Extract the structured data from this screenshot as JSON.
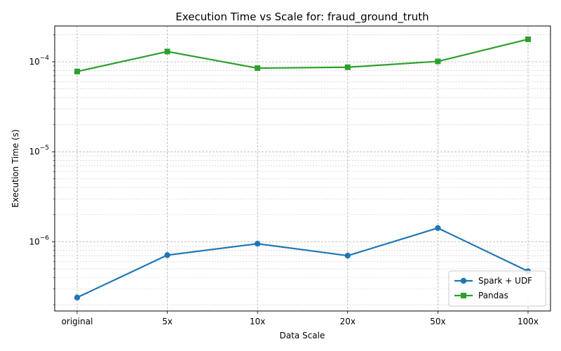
{
  "chart_data": {
    "type": "line",
    "title": "Execution Time vs Scale for: fraud_ground_truth",
    "xlabel": "Data Scale",
    "ylabel": "Execution Time (s)",
    "categories": [
      "original",
      "5x",
      "10x",
      "20x",
      "50x",
      "100x"
    ],
    "yscale": "log",
    "ylim": [
      1.7e-07,
      0.00025
    ],
    "yticks": [
      {
        "value": 1e-06,
        "base": "10",
        "exp": "−6"
      },
      {
        "value": 1e-05,
        "base": "10",
        "exp": "−5"
      },
      {
        "value": 0.0001,
        "base": "10",
        "exp": "−4"
      }
    ],
    "grid": true,
    "legend_position": "bottom-right",
    "series": [
      {
        "name": "Spark + UDF",
        "color": "#1f77b4",
        "marker": "circle",
        "values": [
          2.4e-07,
          7.1e-07,
          9.5e-07,
          7e-07,
          1.42e-06,
          4.7e-07
        ]
      },
      {
        "name": "Pandas",
        "color": "#2ca02c",
        "marker": "square",
        "values": [
          7.8e-05,
          0.00013,
          8.5e-05,
          8.7e-05,
          0.000101,
          0.000178
        ]
      }
    ]
  }
}
